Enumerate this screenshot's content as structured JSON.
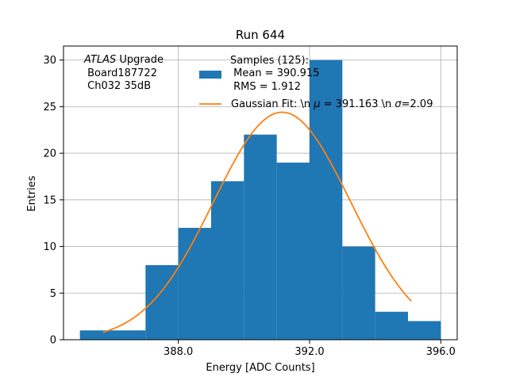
{
  "chart_data": {
    "type": "bar",
    "title": "Run 644",
    "xlabel": "Energy [ADC Counts]",
    "ylabel": "Entries",
    "xlim": [
      384.5,
      396.5
    ],
    "ylim": [
      0,
      31.5
    ],
    "xticks": [
      388.0,
      392.0,
      396.0
    ],
    "xtick_labels": [
      "388.0",
      "392.0",
      "396.0"
    ],
    "yticks": [
      0,
      5,
      10,
      15,
      20,
      25,
      30
    ],
    "ytick_labels": [
      "0",
      "5",
      "10",
      "15",
      "20",
      "25",
      "30"
    ],
    "grid": true,
    "bins": {
      "edges": [
        385,
        386,
        387,
        388,
        389,
        390,
        391,
        392,
        393,
        394,
        395,
        396
      ],
      "values": [
        1,
        1,
        8,
        12,
        17,
        22,
        19,
        30,
        10,
        3,
        2
      ]
    },
    "fit": {
      "mu": 391.163,
      "sigma": 2.09,
      "amplitude": 24.4,
      "x_range": [
        385.7,
        395.1
      ]
    },
    "series_colors": {
      "hist": "#1f77b4",
      "fit": "#ff7f0e"
    },
    "annotation": {
      "atlas_italic": "ATLAS",
      "atlas_rest": " Upgrade",
      "line2": " Board187722",
      "line3": " Ch032 35dB"
    },
    "legend": {
      "position": "top-right",
      "hist_label_lines": [
        "Samples (125):",
        " Mean = 390.915",
        " RMS = 1.912"
      ],
      "fit_label_prefix": "Gaussian Fit: \\n ",
      "fit_mu_symbol": "μ",
      "fit_mu_text": " = 391.163 \\n ",
      "fit_sigma_symbol": "σ",
      "fit_sigma_text": "=2.09"
    }
  }
}
